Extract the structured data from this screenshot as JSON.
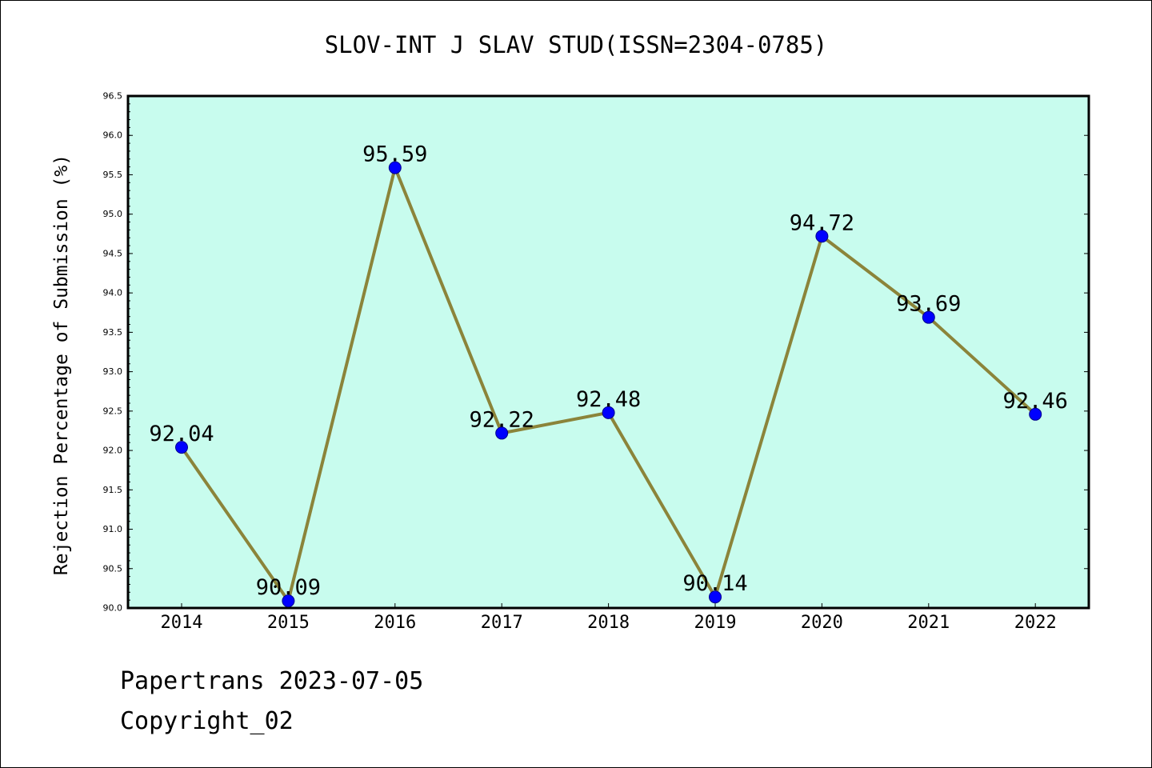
{
  "chart_data": {
    "type": "line",
    "title": "SLOV-INT J SLAV STUD(ISSN=2304-0785)",
    "xlabel": "",
    "ylabel": "Rejection Percentage of Submission (%)",
    "categories": [
      "2014",
      "2015",
      "2016",
      "2017",
      "2018",
      "2019",
      "2020",
      "2021",
      "2022"
    ],
    "series": [
      {
        "values": [
          92.04,
          90.09,
          95.59,
          92.22,
          92.48,
          90.14,
          94.72,
          93.69,
          92.46
        ],
        "data_labels": [
          "92.04",
          "90.09",
          "95.59",
          "92.22",
          "92.48",
          "90.14",
          "94.72",
          "93.69",
          "92.46"
        ]
      }
    ],
    "ylim": [
      90.0,
      96.5
    ],
    "yticks": [
      "90.0",
      "90.5",
      "91.0",
      "91.5",
      "92.0",
      "92.5",
      "93.0",
      "93.5",
      "94.0",
      "94.5",
      "95.0",
      "95.5",
      "96.0",
      "96.5"
    ],
    "grid": false,
    "legend": "none"
  },
  "colors": {
    "plot_background": "#c8fcee",
    "line": "#8b843a",
    "marker": "#0000ff",
    "axis": "#000000"
  },
  "footer": {
    "line1": "Papertrans 2023-07-05",
    "line2": "Copyright_02"
  }
}
